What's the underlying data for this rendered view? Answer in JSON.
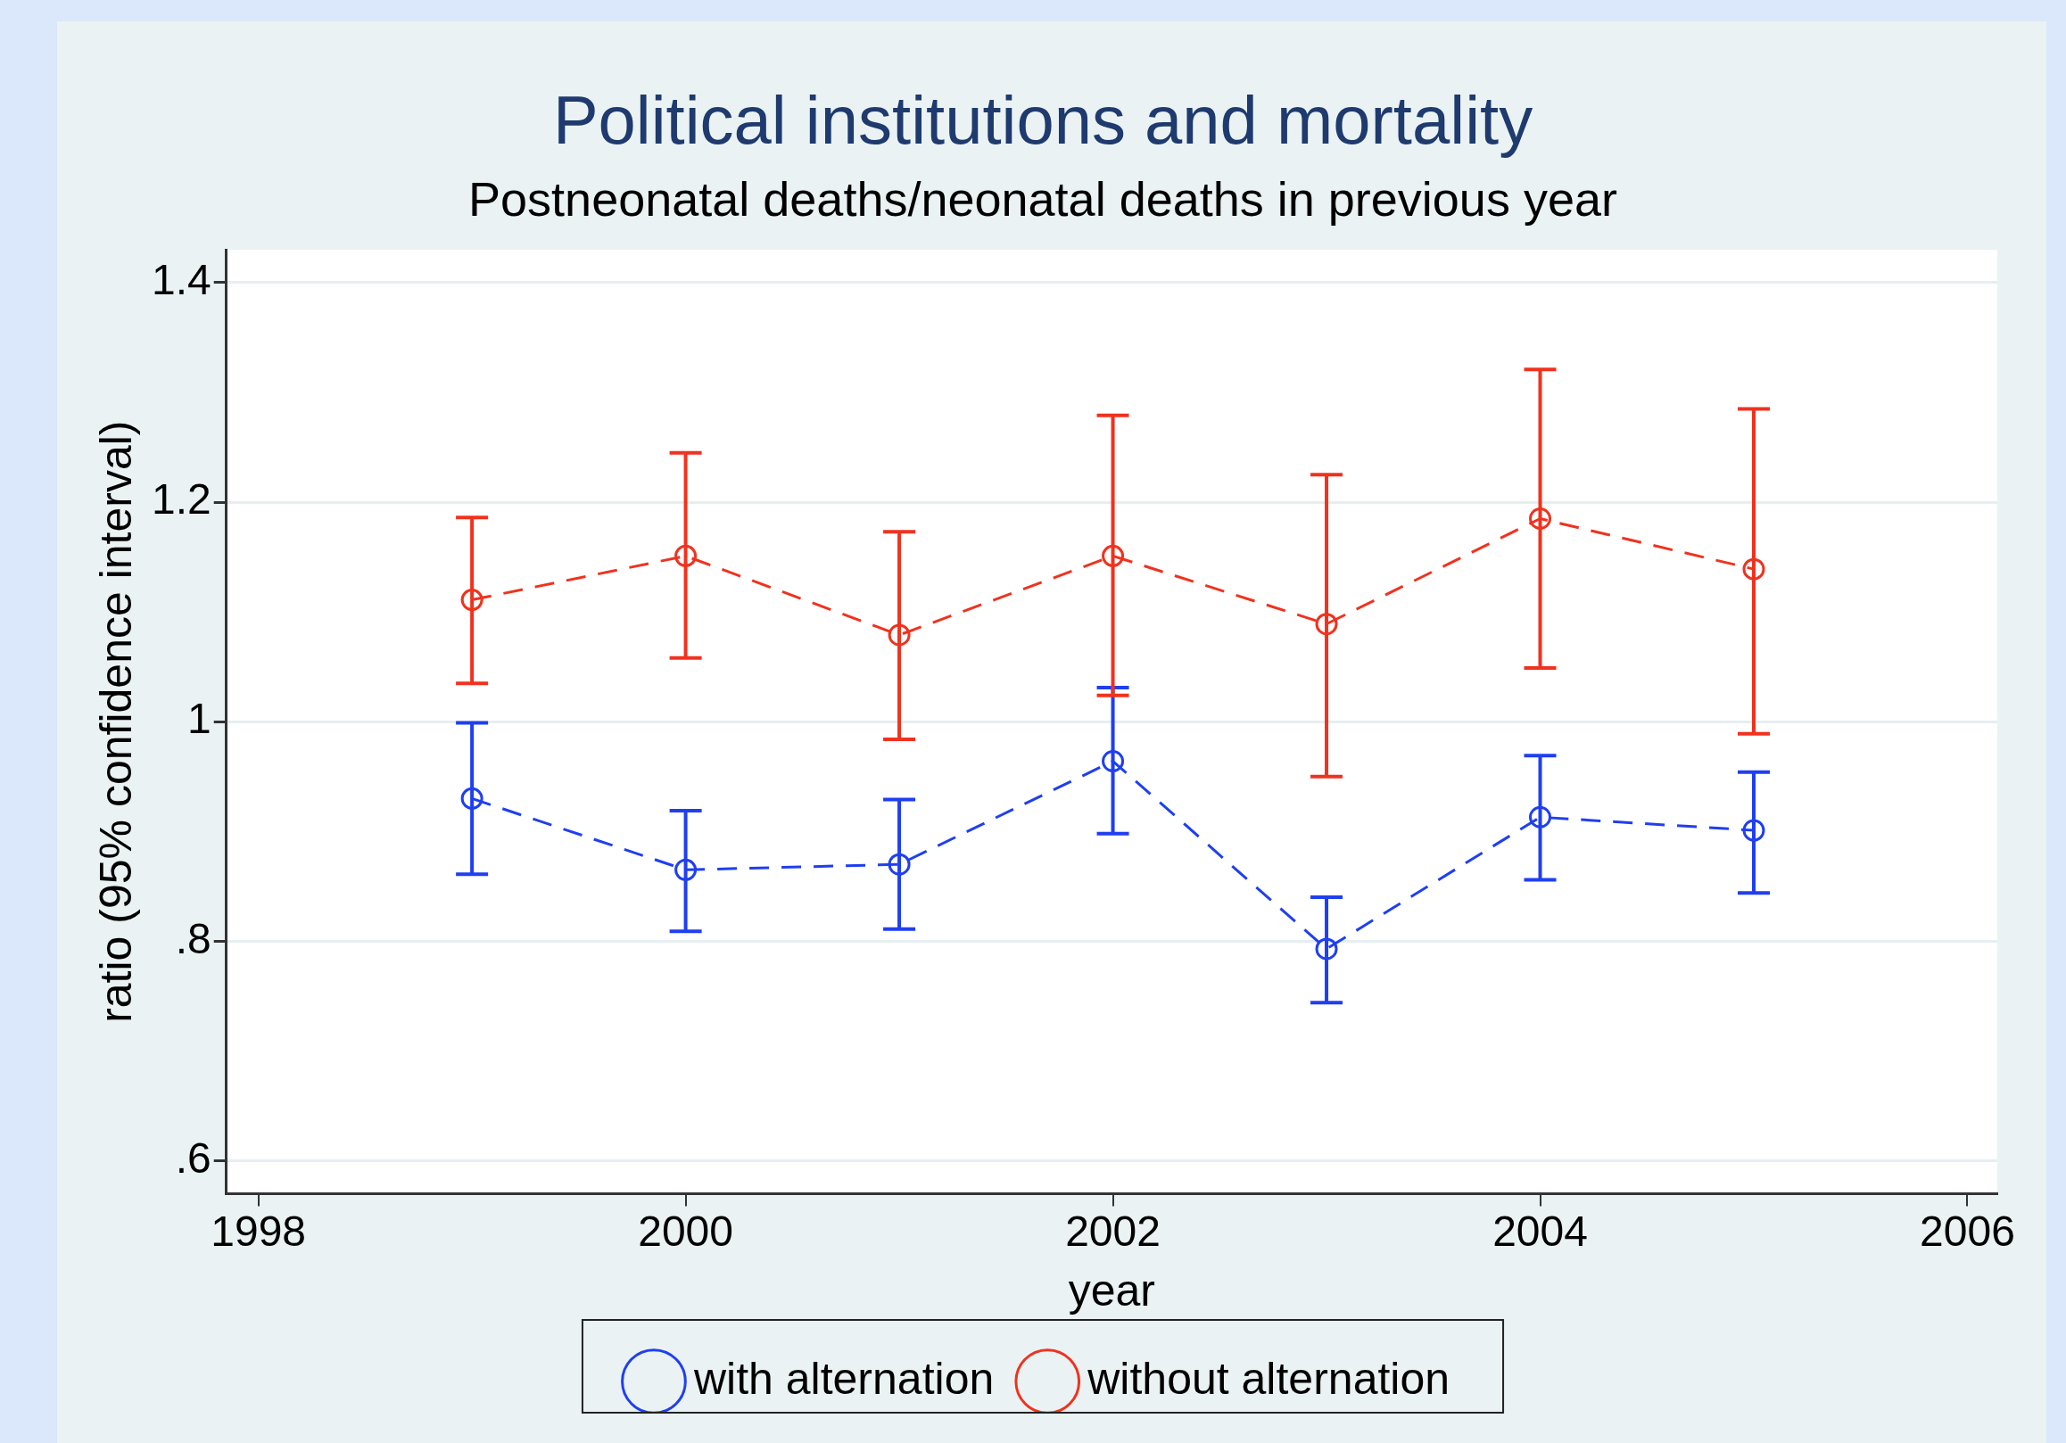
{
  "chart_data": {
    "type": "line",
    "title": "Political institutions and mortality",
    "subtitle": "Postneonatal deaths/neonatal deaths in previous year",
    "xlabel": "year",
    "ylabel": "ratio (95% confidence interval)",
    "x": [
      1999,
      2000,
      2001,
      2002,
      2003,
      2004,
      2005
    ],
    "series": [
      {
        "name": "with alternation",
        "color": "#1f3ff0",
        "values": [
          0.93,
          0.865,
          0.87,
          0.964,
          0.793,
          0.913,
          0.901
        ],
        "errors": [
          [
            0.861,
            0.999
          ],
          [
            0.809,
            0.919
          ],
          [
            0.811,
            0.929
          ],
          [
            0.898,
            1.031
          ],
          [
            0.744,
            0.84
          ],
          [
            0.856,
            0.969
          ],
          [
            0.844,
            0.954
          ]
        ]
      },
      {
        "name": "without alternation",
        "color": "#f0321e",
        "values": [
          1.111,
          1.151,
          1.079,
          1.151,
          1.089,
          1.185,
          1.139
        ],
        "errors": [
          [
            1.035,
            1.186
          ],
          [
            1.058,
            1.245
          ],
          [
            0.984,
            1.173
          ],
          [
            1.024,
            1.279
          ],
          [
            0.95,
            1.225
          ],
          [
            1.049,
            1.321
          ],
          [
            0.989,
            1.285
          ]
        ]
      }
    ],
    "xlim": [
      1997.85,
      2006.14
    ],
    "xticks": [
      1998,
      2000,
      2002,
      2004,
      2006
    ],
    "ylim": [
      0.57,
      1.43
    ],
    "yticks": [
      {
        "value": 0.6,
        "label": ".6"
      },
      {
        "value": 0.8,
        "label": ".8"
      },
      {
        "value": 1,
        "label": "1"
      },
      {
        "value": 1.2,
        "label": "1.2"
      },
      {
        "value": 1.4,
        "label": "1.4"
      }
    ],
    "grid": "y",
    "legend": "bottom",
    "marker": "circle",
    "line_style": "dashed"
  }
}
